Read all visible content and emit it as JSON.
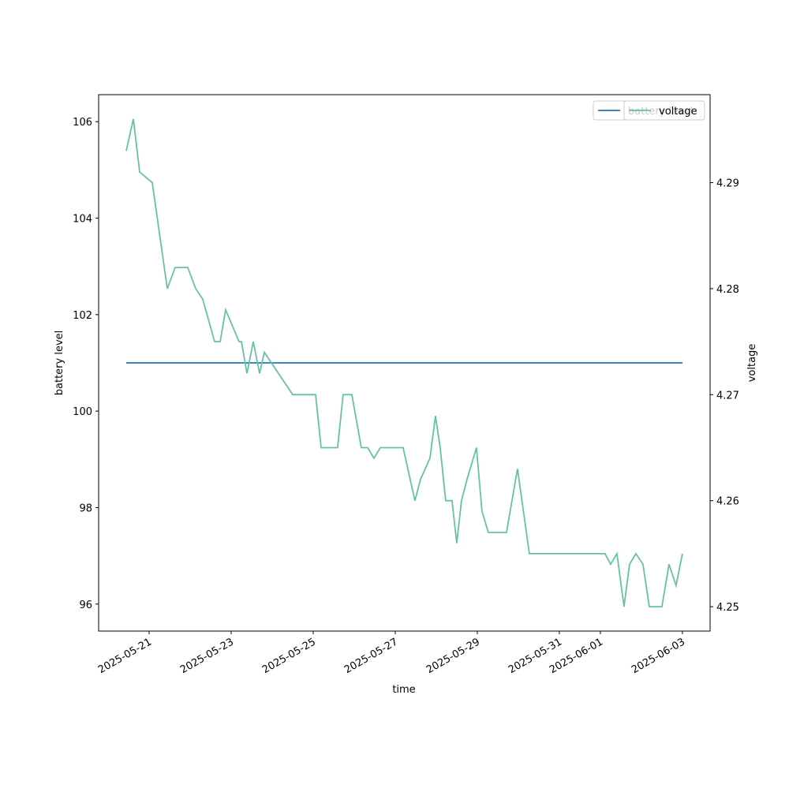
{
  "chart_data": {
    "type": "line",
    "x_label": "time",
    "y_label": "battery level",
    "y2_label": "voltage",
    "x": [
      "2025-05-20T10:37",
      "2025-05-20T14:46",
      "2025-05-20T18:28",
      "2025-05-21T01:51",
      "2025-05-21T10:37",
      "2025-05-21T15:14",
      "2025-05-21T22:37",
      "2025-05-22T03:14",
      "2025-05-22T07:23",
      "2025-05-22T14:18",
      "2025-05-22T17:32",
      "2025-05-22T20:46",
      "2025-05-23T04:37",
      "2025-05-23T06:00",
      "2025-05-23T09:14",
      "2025-05-23T12:55",
      "2025-05-23T16:37",
      "2025-05-23T19:23",
      "2025-05-24T12:00",
      "2025-05-25T01:23",
      "2025-05-25T04:37",
      "2025-05-25T14:18",
      "2025-05-25T17:32",
      "2025-05-25T22:37",
      "2025-05-26T04:09",
      "2025-05-26T07:51",
      "2025-05-26T11:32",
      "2025-05-26T15:14",
      "2025-05-27T04:37",
      "2025-05-27T11:32",
      "2025-05-27T14:46",
      "2025-05-27T20:18",
      "2025-05-27T23:32",
      "2025-05-28T02:18",
      "2025-05-28T05:32",
      "2025-05-28T09:14",
      "2025-05-28T12:00",
      "2025-05-28T14:46",
      "2025-05-28T18:00",
      "2025-05-28T23:32",
      "2025-05-29T02:46",
      "2025-05-29T06:28",
      "2025-05-29T17:05",
      "2025-05-29T23:32",
      "2025-05-30T06:28",
      "2025-06-01T02:46",
      "2025-06-01T06:00",
      "2025-06-01T09:42",
      "2025-06-01T13:51",
      "2025-06-01T17:05",
      "2025-06-01T20:46",
      "2025-06-02T00:55",
      "2025-06-02T04:37",
      "2025-06-02T12:00",
      "2025-06-02T16:09",
      "2025-06-02T20:18",
      "2025-06-03T00:00"
    ],
    "series": [
      {
        "name": "battery level",
        "color": "#1f77b4",
        "axis": "y",
        "values": [
          101,
          101,
          101,
          101,
          101,
          101,
          101,
          101,
          101,
          101,
          101,
          101,
          101,
          101,
          101,
          101,
          101,
          101,
          101,
          101,
          101,
          101,
          101,
          101,
          101,
          101,
          101,
          101,
          101,
          101,
          101,
          101,
          101,
          101,
          101,
          101,
          101,
          101,
          101,
          101,
          101,
          101,
          101,
          101,
          101,
          101,
          101,
          101,
          101,
          101,
          101,
          101,
          101,
          101,
          101,
          101,
          101
        ]
      },
      {
        "name": "voltage",
        "color": "#66c2a5",
        "axis": "y2",
        "values": [
          4.293,
          4.296,
          4.291,
          4.29,
          4.28,
          4.282,
          4.282,
          4.28,
          4.279,
          4.275,
          4.275,
          4.278,
          4.275,
          4.275,
          4.272,
          4.275,
          4.272,
          4.274,
          4.27,
          4.27,
          4.265,
          4.265,
          4.27,
          4.27,
          4.265,
          4.265,
          4.264,
          4.265,
          4.265,
          4.26,
          4.262,
          4.264,
          4.268,
          4.265,
          4.26,
          4.26,
          4.256,
          4.26,
          4.262,
          4.265,
          4.259,
          4.257,
          4.257,
          4.263,
          4.255,
          4.255,
          4.254,
          4.255,
          4.25,
          4.254,
          4.255,
          4.254,
          4.25,
          4.25,
          4.254,
          4.252,
          4.255
        ]
      }
    ],
    "xlim": [
      "2025-05-19T18:28",
      "2025-06-03T16:12"
    ],
    "xticks": [
      "2025-05-21",
      "2025-05-23",
      "2025-05-25",
      "2025-05-27",
      "2025-05-29",
      "2025-05-31",
      "2025-06-01",
      "2025-06-03"
    ],
    "ylim": [
      95.44,
      106.56
    ],
    "yticks": [
      96,
      98,
      100,
      102,
      104,
      106
    ],
    "y2lim": [
      4.2477,
      4.2983
    ],
    "y2ticks": [
      4.25,
      4.26,
      4.27,
      4.28,
      4.29
    ],
    "legend": "upper right"
  }
}
